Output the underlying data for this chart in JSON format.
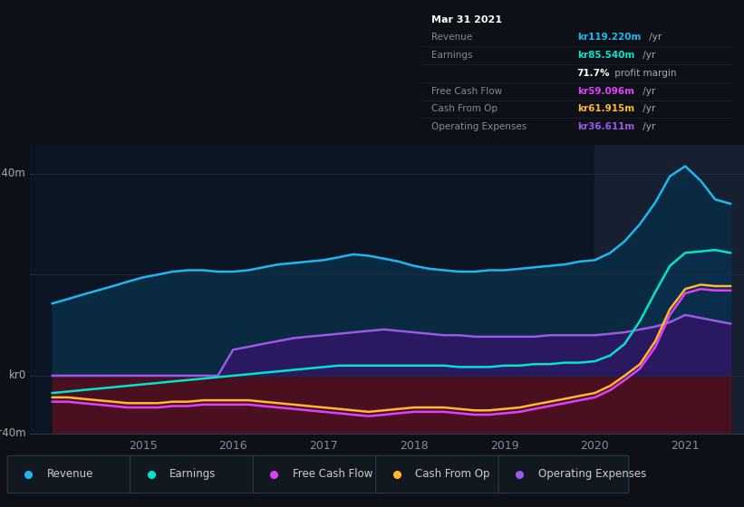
{
  "bg_color": "#0d1117",
  "plot_bg_color": "#0c1524",
  "grid_color": "#1e2d3d",
  "ylim": [
    -40,
    160
  ],
  "xlim_start": 2013.75,
  "xlim_end": 2021.65,
  "xticks": [
    2015,
    2016,
    2017,
    2018,
    2019,
    2020,
    2021
  ],
  "revenue_color": "#1eb8f0",
  "earnings_color": "#00e5cc",
  "fcf_color": "#e040fb",
  "cashfromop_color": "#ffb830",
  "opex_color": "#9b59e8",
  "revenue_fill_color": "#0a2a42",
  "opex_fill_color": "#2a1860",
  "negative_fill_color": "#4a1020",
  "highlight_bg_color": "#162030",
  "x_years": [
    2014.0,
    2014.17,
    2014.33,
    2014.5,
    2014.67,
    2014.83,
    2015.0,
    2015.17,
    2015.33,
    2015.5,
    2015.67,
    2015.83,
    2016.0,
    2016.17,
    2016.33,
    2016.5,
    2016.67,
    2016.83,
    2017.0,
    2017.17,
    2017.33,
    2017.5,
    2017.67,
    2017.83,
    2018.0,
    2018.17,
    2018.33,
    2018.5,
    2018.67,
    2018.83,
    2019.0,
    2019.17,
    2019.33,
    2019.5,
    2019.67,
    2019.83,
    2020.0,
    2020.17,
    2020.33,
    2020.5,
    2020.67,
    2020.83,
    2021.0,
    2021.17,
    2021.33,
    2021.5
  ],
  "revenue": [
    50,
    53,
    56,
    59,
    62,
    65,
    68,
    70,
    72,
    73,
    73,
    72,
    72,
    73,
    75,
    77,
    78,
    79,
    80,
    82,
    84,
    83,
    81,
    79,
    76,
    74,
    73,
    72,
    72,
    73,
    73,
    74,
    75,
    76,
    77,
    79,
    80,
    85,
    93,
    105,
    120,
    138,
    145,
    135,
    122,
    119
  ],
  "earnings": [
    -12,
    -11,
    -10,
    -9,
    -8,
    -7,
    -6,
    -5,
    -4,
    -3,
    -2,
    -1,
    0,
    1,
    2,
    3,
    4,
    5,
    6,
    7,
    7,
    7,
    7,
    7,
    7,
    7,
    7,
    6,
    6,
    6,
    7,
    7,
    8,
    8,
    9,
    9,
    10,
    14,
    22,
    38,
    58,
    76,
    85,
    86,
    87,
    85
  ],
  "fcf": [
    -18,
    -18,
    -19,
    -20,
    -21,
    -22,
    -22,
    -22,
    -21,
    -21,
    -20,
    -20,
    -20,
    -20,
    -21,
    -22,
    -23,
    -24,
    -25,
    -26,
    -27,
    -28,
    -27,
    -26,
    -25,
    -25,
    -25,
    -26,
    -27,
    -27,
    -26,
    -25,
    -23,
    -21,
    -19,
    -17,
    -15,
    -10,
    -3,
    5,
    20,
    42,
    57,
    60,
    59,
    59
  ],
  "cashfromop": [
    -15,
    -15,
    -16,
    -17,
    -18,
    -19,
    -19,
    -19,
    -18,
    -18,
    -17,
    -17,
    -17,
    -17,
    -18,
    -19,
    -20,
    -21,
    -22,
    -23,
    -24,
    -25,
    -24,
    -23,
    -22,
    -22,
    -22,
    -23,
    -24,
    -24,
    -23,
    -22,
    -20,
    -18,
    -16,
    -14,
    -12,
    -7,
    0,
    8,
    24,
    46,
    60,
    63,
    62,
    62
  ],
  "opex": [
    0,
    0,
    0,
    0,
    0,
    0,
    0,
    0,
    0,
    0,
    0,
    0,
    18,
    20,
    22,
    24,
    26,
    27,
    28,
    29,
    30,
    31,
    32,
    31,
    30,
    29,
    28,
    28,
    27,
    27,
    27,
    27,
    27,
    28,
    28,
    28,
    28,
    29,
    30,
    32,
    34,
    37,
    42,
    40,
    38,
    36
  ],
  "highlight_x_start": 2020.0,
  "highlight_x_end": 2021.65,
  "tooltip_rows": [
    {
      "label": "Mar 31 2021",
      "value": "",
      "val_color": "#ffffff",
      "header": true
    },
    {
      "label": "Revenue",
      "value": "kr119.220m",
      "suffix": " /yr",
      "val_color": "#1eb8f0"
    },
    {
      "label": "Earnings",
      "value": "kr85.540m",
      "suffix": " /yr",
      "val_color": "#00e5cc"
    },
    {
      "label": "",
      "value": "71.7%",
      "suffix": " profit margin",
      "val_color": "#ffffff",
      "subrow": true
    },
    {
      "label": "Free Cash Flow",
      "value": "kr59.096m",
      "suffix": " /yr",
      "val_color": "#e040fb"
    },
    {
      "label": "Cash From Op",
      "value": "kr61.915m",
      "suffix": " /yr",
      "val_color": "#ffb830"
    },
    {
      "label": "Operating Expenses",
      "value": "kr36.611m",
      "suffix": " /yr",
      "val_color": "#9b59e8"
    }
  ],
  "legend_items": [
    {
      "label": "Revenue",
      "color": "#1eb8f0"
    },
    {
      "label": "Earnings",
      "color": "#00e5cc"
    },
    {
      "label": "Free Cash Flow",
      "color": "#e040fb"
    },
    {
      "label": "Cash From Op",
      "color": "#ffb830"
    },
    {
      "label": "Operating Expenses",
      "color": "#9b59e8"
    }
  ]
}
